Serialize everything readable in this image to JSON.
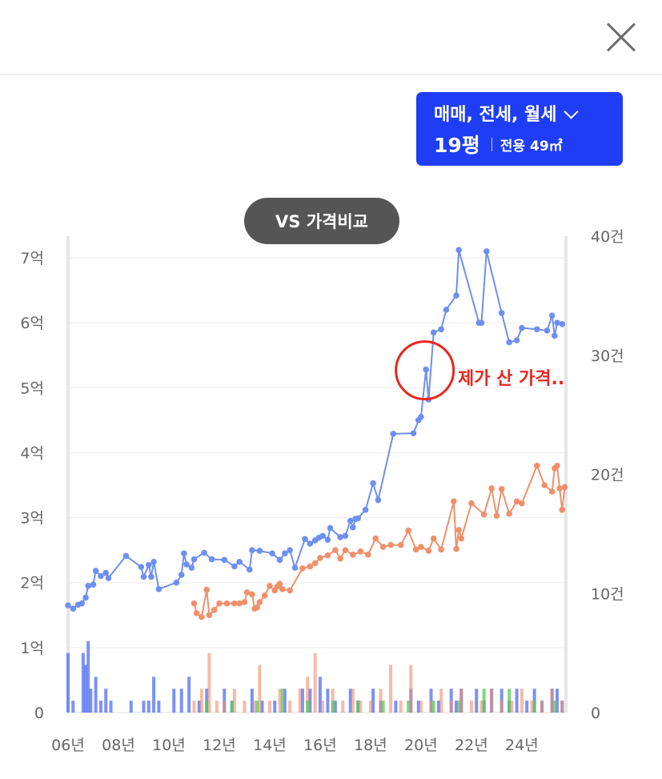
{
  "header": {
    "close_icon": "close-icon"
  },
  "filter": {
    "deal_types": "매매, 전세, 월세",
    "pyeong": "19평",
    "area": "전용 49㎡",
    "dropdown_icon": "chevron-down-icon"
  },
  "vs_button": {
    "label": "VS 가격비교"
  },
  "annotation": {
    "text": "제가 산 가격..",
    "color": "#e8271d"
  },
  "chart_data": {
    "type": "line",
    "x_ticks": [
      "06년",
      "08년",
      "10년",
      "12년",
      "14년",
      "16년",
      "18년",
      "20년",
      "22년",
      "24년"
    ],
    "y_left_ticks": [
      "0",
      "1억",
      "2억",
      "3억",
      "4억",
      "5억",
      "6억",
      "7억"
    ],
    "y_right_ticks": [
      "0",
      "10건",
      "20건",
      "30건",
      "40건"
    ],
    "ylim_left": [
      0,
      7
    ],
    "ylim_right": [
      0,
      40
    ],
    "series": [
      {
        "color": "#6f8ff0",
        "points": [
          [
            2006.0,
            1.65
          ],
          [
            2006.2,
            1.6
          ],
          [
            2006.4,
            1.66
          ],
          [
            2006.55,
            1.68
          ],
          [
            2006.7,
            1.77
          ],
          [
            2006.8,
            1.95
          ],
          [
            2007.0,
            1.97
          ],
          [
            2007.1,
            2.18
          ],
          [
            2007.3,
            2.1
          ],
          [
            2007.5,
            2.15
          ],
          [
            2007.6,
            2.07
          ],
          [
            2008.3,
            2.41
          ],
          [
            2008.9,
            2.24
          ],
          [
            2009.0,
            2.09
          ],
          [
            2009.2,
            2.27
          ],
          [
            2009.3,
            2.09
          ],
          [
            2009.4,
            2.32
          ],
          [
            2009.6,
            1.9
          ],
          [
            2010.3,
            2.0
          ],
          [
            2010.5,
            2.12
          ],
          [
            2010.6,
            2.45
          ],
          [
            2010.7,
            2.28
          ],
          [
            2010.9,
            2.23
          ],
          [
            2011.0,
            2.36
          ],
          [
            2011.4,
            2.46
          ],
          [
            2011.7,
            2.36
          ],
          [
            2012.2,
            2.35
          ],
          [
            2012.6,
            2.25
          ],
          [
            2012.8,
            2.32
          ],
          [
            2013.2,
            2.2
          ],
          [
            2013.3,
            2.5
          ],
          [
            2013.6,
            2.49
          ],
          [
            2014.1,
            2.45
          ],
          [
            2014.4,
            2.35
          ],
          [
            2014.6,
            2.45
          ],
          [
            2014.8,
            2.5
          ],
          [
            2015.0,
            2.23
          ],
          [
            2015.4,
            2.67
          ],
          [
            2015.6,
            2.6
          ],
          [
            2015.8,
            2.65
          ],
          [
            2015.95,
            2.69
          ],
          [
            2016.1,
            2.72
          ],
          [
            2016.3,
            2.66
          ],
          [
            2016.4,
            2.84
          ],
          [
            2016.8,
            2.7
          ],
          [
            2017.0,
            2.72
          ],
          [
            2017.2,
            2.95
          ],
          [
            2017.3,
            2.85
          ],
          [
            2017.4,
            2.98
          ],
          [
            2017.5,
            2.99
          ],
          [
            2017.8,
            3.12
          ],
          [
            2018.1,
            3.53
          ],
          [
            2018.3,
            3.27
          ],
          [
            2018.9,
            4.29
          ],
          [
            2019.7,
            4.3
          ],
          [
            2019.9,
            4.5
          ],
          [
            2020.0,
            4.55
          ],
          [
            2020.2,
            5.28
          ],
          [
            2020.3,
            4.82
          ],
          [
            2020.5,
            5.85
          ],
          [
            2020.8,
            5.9
          ],
          [
            2021.0,
            6.2
          ],
          [
            2021.4,
            6.42
          ],
          [
            2021.5,
            7.12
          ],
          [
            2022.3,
            6.0
          ],
          [
            2022.4,
            6.0
          ],
          [
            2022.6,
            7.1
          ],
          [
            2023.2,
            6.15
          ],
          [
            2023.5,
            5.7
          ],
          [
            2023.8,
            5.73
          ],
          [
            2024.0,
            5.92
          ],
          [
            2024.6,
            5.9
          ],
          [
            2025.0,
            5.88
          ],
          [
            2025.2,
            6.11
          ],
          [
            2025.3,
            5.8
          ],
          [
            2025.4,
            6.0
          ],
          [
            2025.6,
            5.98
          ]
        ]
      },
      {
        "color": "#f0906a",
        "points": [
          [
            2011.0,
            1.68
          ],
          [
            2011.1,
            1.53
          ],
          [
            2011.3,
            1.47
          ],
          [
            2011.5,
            1.89
          ],
          [
            2011.6,
            1.5
          ],
          [
            2011.8,
            1.58
          ],
          [
            2012.0,
            1.68
          ],
          [
            2012.3,
            1.68
          ],
          [
            2012.6,
            1.68
          ],
          [
            2012.8,
            1.68
          ],
          [
            2013.0,
            1.7
          ],
          [
            2013.1,
            1.85
          ],
          [
            2013.3,
            1.82
          ],
          [
            2013.4,
            1.6
          ],
          [
            2013.5,
            1.62
          ],
          [
            2013.6,
            1.7
          ],
          [
            2013.8,
            1.8
          ],
          [
            2014.0,
            1.95
          ],
          [
            2014.2,
            1.88
          ],
          [
            2014.3,
            1.94
          ],
          [
            2014.4,
            1.98
          ],
          [
            2014.5,
            1.9
          ],
          [
            2014.8,
            1.88
          ],
          [
            2015.3,
            2.22
          ],
          [
            2015.6,
            2.25
          ],
          [
            2015.8,
            2.3
          ],
          [
            2016.0,
            2.38
          ],
          [
            2016.3,
            2.42
          ],
          [
            2016.6,
            2.5
          ],
          [
            2016.8,
            2.37
          ],
          [
            2017.0,
            2.5
          ],
          [
            2017.3,
            2.43
          ],
          [
            2017.6,
            2.48
          ],
          [
            2017.9,
            2.43
          ],
          [
            2018.2,
            2.68
          ],
          [
            2018.5,
            2.55
          ],
          [
            2018.8,
            2.58
          ],
          [
            2019.2,
            2.58
          ],
          [
            2019.5,
            2.8
          ],
          [
            2019.8,
            2.51
          ],
          [
            2020.0,
            2.55
          ],
          [
            2020.3,
            2.49
          ],
          [
            2020.5,
            2.68
          ],
          [
            2020.8,
            2.51
          ],
          [
            2021.3,
            3.25
          ],
          [
            2021.4,
            2.52
          ],
          [
            2021.5,
            2.81
          ],
          [
            2021.6,
            2.68
          ],
          [
            2022.0,
            3.22
          ],
          [
            2022.5,
            3.05
          ],
          [
            2022.8,
            3.45
          ],
          [
            2023.0,
            3.03
          ],
          [
            2023.2,
            3.44
          ],
          [
            2023.5,
            3.06
          ],
          [
            2023.8,
            3.25
          ],
          [
            2024.0,
            3.22
          ],
          [
            2024.6,
            3.8
          ],
          [
            2024.9,
            3.5
          ],
          [
            2025.2,
            3.4
          ],
          [
            2025.3,
            3.76
          ],
          [
            2025.4,
            3.8
          ],
          [
            2025.5,
            3.45
          ],
          [
            2025.6,
            3.12
          ],
          [
            2025.7,
            3.47
          ]
        ]
      }
    ],
    "volume_bars": {
      "blue": [
        [
          2006.0,
          5
        ],
        [
          2006.2,
          1
        ],
        [
          2006.6,
          5
        ],
        [
          2006.7,
          4
        ],
        [
          2006.8,
          6
        ],
        [
          2006.9,
          2
        ],
        [
          2007.1,
          3
        ],
        [
          2007.3,
          1
        ],
        [
          2007.5,
          2
        ],
        [
          2007.7,
          1
        ],
        [
          2008.5,
          1
        ],
        [
          2009.0,
          1
        ],
        [
          2009.2,
          1
        ],
        [
          2009.4,
          3
        ],
        [
          2009.6,
          1
        ],
        [
          2010.2,
          2
        ],
        [
          2010.5,
          2
        ],
        [
          2010.8,
          3
        ],
        [
          2011.2,
          1
        ],
        [
          2011.5,
          2
        ],
        [
          2012.2,
          2
        ],
        [
          2012.5,
          1
        ],
        [
          2013.3,
          2
        ],
        [
          2013.7,
          1
        ],
        [
          2014.2,
          1
        ],
        [
          2014.6,
          2
        ],
        [
          2015.3,
          2
        ],
        [
          2015.6,
          2
        ],
        [
          2016.0,
          3
        ],
        [
          2016.3,
          2
        ],
        [
          2016.6,
          1
        ],
        [
          2017.2,
          2
        ],
        [
          2017.5,
          1
        ],
        [
          2018.1,
          2
        ],
        [
          2018.4,
          1
        ],
        [
          2019.0,
          1
        ],
        [
          2019.6,
          2
        ],
        [
          2019.9,
          1
        ],
        [
          2020.4,
          2
        ],
        [
          2020.7,
          1
        ],
        [
          2021.2,
          2
        ],
        [
          2021.4,
          1
        ],
        [
          2021.6,
          2
        ],
        [
          2022.2,
          2
        ],
        [
          2022.5,
          1
        ],
        [
          2022.8,
          2
        ],
        [
          2023.2,
          2
        ],
        [
          2023.5,
          1
        ],
        [
          2023.8,
          2
        ],
        [
          2024.2,
          1
        ],
        [
          2024.5,
          2
        ],
        [
          2024.8,
          1
        ],
        [
          2025.2,
          2
        ],
        [
          2025.4,
          2
        ],
        [
          2025.6,
          1
        ]
      ],
      "orange": [
        [
          2011.0,
          1
        ],
        [
          2011.3,
          2
        ],
        [
          2011.6,
          5
        ],
        [
          2011.9,
          1
        ],
        [
          2012.2,
          1
        ],
        [
          2012.6,
          2
        ],
        [
          2013.0,
          1
        ],
        [
          2013.4,
          1
        ],
        [
          2013.6,
          4
        ],
        [
          2014.0,
          1
        ],
        [
          2014.4,
          2
        ],
        [
          2014.8,
          1
        ],
        [
          2015.2,
          2
        ],
        [
          2015.5,
          3
        ],
        [
          2015.8,
          5
        ],
        [
          2016.1,
          1
        ],
        [
          2016.5,
          2
        ],
        [
          2016.9,
          1
        ],
        [
          2017.3,
          2
        ],
        [
          2017.6,
          1
        ],
        [
          2018.0,
          1
        ],
        [
          2018.4,
          2
        ],
        [
          2018.8,
          4
        ],
        [
          2019.2,
          1
        ],
        [
          2019.6,
          4
        ],
        [
          2020.0,
          1
        ],
        [
          2020.4,
          1
        ],
        [
          2020.8,
          2
        ],
        [
          2021.2,
          1
        ],
        [
          2021.6,
          2
        ],
        [
          2022.0,
          1
        ],
        [
          2022.4,
          1
        ],
        [
          2022.8,
          2
        ],
        [
          2023.2,
          1
        ],
        [
          2023.6,
          1
        ],
        [
          2024.0,
          2
        ],
        [
          2024.4,
          1
        ],
        [
          2024.8,
          1
        ],
        [
          2025.2,
          2
        ],
        [
          2025.6,
          1
        ]
      ],
      "green": [
        [
          2011.5,
          1
        ],
        [
          2012.5,
          1
        ],
        [
          2013.5,
          1
        ],
        [
          2014.5,
          2
        ],
        [
          2015.5,
          1
        ],
        [
          2016.5,
          1
        ],
        [
          2017.5,
          1
        ],
        [
          2018.5,
          1
        ],
        [
          2019.5,
          1
        ],
        [
          2020.5,
          1
        ],
        [
          2021.5,
          1
        ],
        [
          2022.5,
          2
        ],
        [
          2023.5,
          2
        ],
        [
          2024.5,
          1
        ],
        [
          2025.3,
          1
        ]
      ]
    }
  }
}
